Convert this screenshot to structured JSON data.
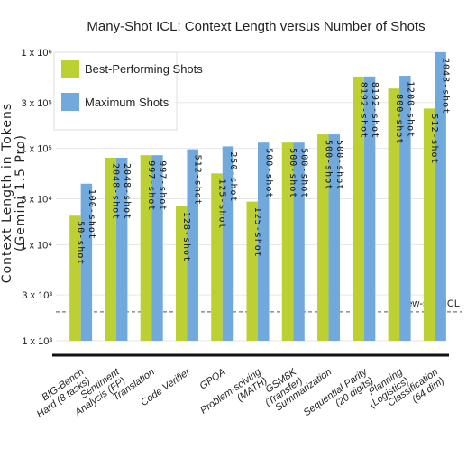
{
  "chart_data": {
    "type": "bar",
    "title": "Many-Shot ICL: Context Length versus Number of Shots",
    "ylabel_lines": [
      "Context Length in Tokens",
      "(Gemini 1.5 Pro)"
    ],
    "yscale": "log",
    "ylim": [
      1000,
      1000000
    ],
    "yticks": [
      1000,
      3000,
      10000,
      30000,
      100000,
      300000,
      1000000
    ],
    "ytick_labels": [
      "1 x 10³",
      "3 x 10³",
      "1 x 10⁴",
      "3 x 10⁴",
      "1 x 10⁵",
      "3 x 10⁵",
      "1 x 10⁶"
    ],
    "categories": [
      [
        "BIG-Bench",
        "Hard (8 tasks)"
      ],
      [
        "Sentiment",
        "Analysis (FP)"
      ],
      [
        "Translation"
      ],
      [
        "Code Verifier"
      ],
      [
        "GPQA"
      ],
      [
        "Problem-solving",
        "(MATH)"
      ],
      [
        "GSM8K",
        "(Transfer)"
      ],
      [
        "Summarization"
      ],
      [
        "Sequential Parity",
        "(20 digits)"
      ],
      [
        "Planning",
        "(Logistics)"
      ],
      [
        "Classification",
        "(64 dim)"
      ]
    ],
    "series": [
      {
        "name": "Best-Performing Shots",
        "color": "#bccf33",
        "values": [
          20000,
          80000,
          85000,
          25000,
          55000,
          28000,
          115000,
          140000,
          560000,
          420000,
          260000
        ],
        "labels": [
          "50-shot",
          "2048-shot",
          "997-shot",
          "128-shot",
          "125-shot",
          "125-shot",
          "500-shot",
          "500-shot",
          "8192-shot",
          "800-shot",
          "512-shot"
        ]
      },
      {
        "name": "Maximum Shots",
        "color": "#72a9dc",
        "values": [
          43000,
          80000,
          85000,
          98000,
          105000,
          115000,
          115000,
          140000,
          560000,
          570000,
          1000000
        ],
        "labels": [
          "100-shot",
          "2048-shot",
          "997-shot",
          "512-shot",
          "250-shot",
          "500-shot",
          "500-shot",
          "500-shot",
          "8192-shot",
          "1200-shot",
          "2048-shot"
        ]
      }
    ],
    "reference_line": {
      "label": "Few-shot ICL",
      "value": 2000
    },
    "legend": {
      "placement": "top-left"
    },
    "grid": true
  }
}
